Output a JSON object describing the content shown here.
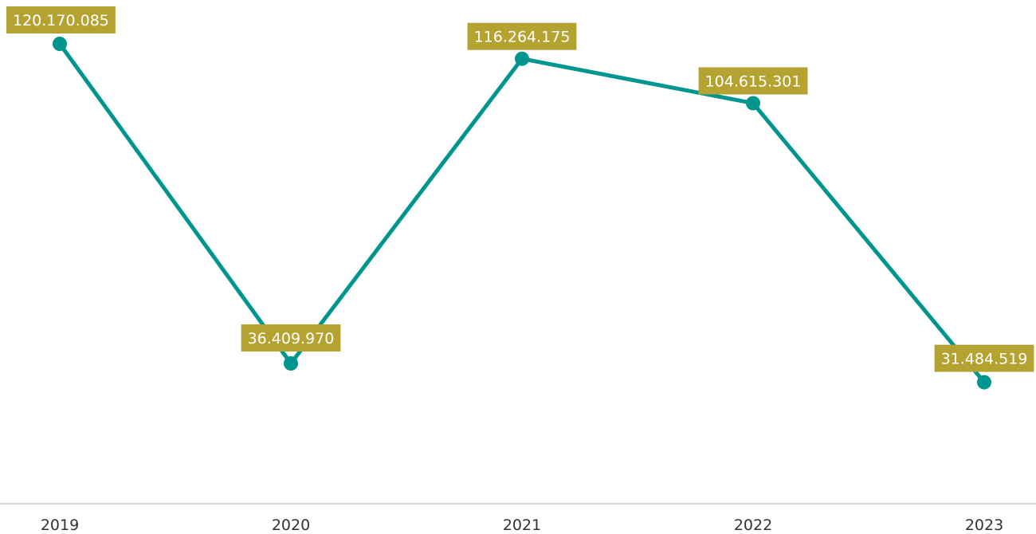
{
  "chart_data": {
    "type": "line",
    "categories": [
      "2019",
      "2020",
      "2021",
      "2022",
      "2023"
    ],
    "series": [
      {
        "values": [
          120170085,
          36409970,
          116264175,
          104615301,
          31484519
        ],
        "data_labels": [
          "120.170.085",
          "36.409.970",
          "116.264.175",
          "104.615.301",
          "31.484.519"
        ]
      }
    ],
    "title": "",
    "xlabel": "",
    "ylabel": "",
    "grid": false,
    "legend": "none"
  },
  "colors": {
    "line": "#00958f",
    "label_bg": "#b5a331",
    "label_text": "#ffffff",
    "axis": "#d9d9d9",
    "tick_text": "#333333"
  }
}
